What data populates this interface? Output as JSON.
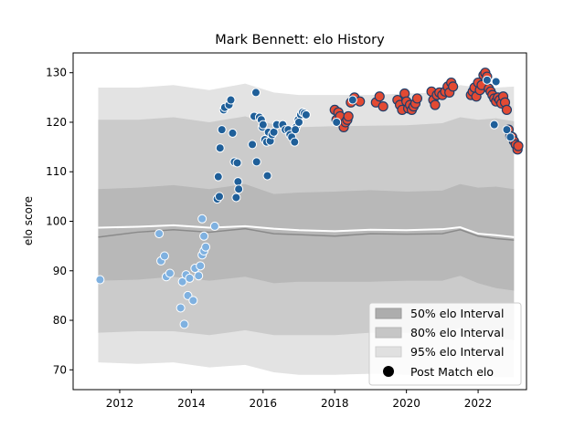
{
  "chart_data": {
    "type": "scatter",
    "title": "Mark Bennett: elo History",
    "xlabel": "",
    "ylabel": "elo score",
    "xlim": [
      2010.7,
      2023.35
    ],
    "ylim": [
      66,
      134
    ],
    "x_ticks": [
      2012,
      2014,
      2016,
      2018,
      2020,
      2022
    ],
    "y_ticks": [
      70,
      80,
      90,
      100,
      110,
      120,
      130
    ],
    "grid": false,
    "legend_position": "lower-right",
    "colors": {
      "band95": "#e3e3e3",
      "band80": "#cbcbcb",
      "band50": "#b8b8b8",
      "median_line": "#8a8a8a",
      "mean_line": "#ffffff",
      "early_fill": "#1f5f99",
      "early_edge": "#ffffff",
      "early_fill_light": "#7fb1e0",
      "late_fill": "#e34a33",
      "late_edge": "#1f3f6b"
    },
    "legend": [
      {
        "label": "50% elo Interval",
        "kind": "band50"
      },
      {
        "label": "80% elo Interval",
        "kind": "band80"
      },
      {
        "label": "95% elo Interval",
        "kind": "band95"
      },
      {
        "label": "Post Match elo",
        "kind": "marker"
      }
    ],
    "bands": {
      "x": [
        2011.4,
        2012.5,
        2013.5,
        2014.5,
        2015.5,
        2016.3,
        2017.0,
        2018.0,
        2019.0,
        2020.0,
        2021.0,
        2021.5,
        2022.0,
        2022.5,
        2023.0
      ],
      "p95_upper": [
        127,
        127,
        127.5,
        126.5,
        127.8,
        126.0,
        125.5,
        125.5,
        125.5,
        125.8,
        126.0,
        127.5,
        127.0,
        127.0,
        127.2
      ],
      "p80_upper": [
        120.5,
        120.5,
        121.0,
        120.0,
        121.2,
        119.5,
        119.0,
        119.2,
        119.3,
        119.4,
        119.8,
        121.0,
        120.5,
        120.8,
        120.2
      ],
      "p50_upper": [
        106.5,
        106.8,
        107.3,
        106.5,
        107.5,
        105.5,
        105.8,
        106.0,
        106.3,
        106.0,
        106.2,
        107.5,
        106.8,
        107.0,
        106.5
      ],
      "p50_lower": [
        88.0,
        88.2,
        88.8,
        88.0,
        88.8,
        87.5,
        87.8,
        87.8,
        87.8,
        88.0,
        88.0,
        89.0,
        87.5,
        86.5,
        86.0
      ],
      "p80_lower": [
        77.5,
        77.8,
        77.8,
        77.0,
        78.0,
        77.0,
        77.0,
        77.0,
        77.5,
        77.5,
        77.5,
        78.5,
        76.8,
        76.5,
        76.0
      ],
      "p95_lower": [
        71.5,
        71.2,
        71.5,
        70.5,
        71.0,
        69.5,
        69.0,
        69.0,
        69.2,
        69.0,
        69.2,
        70.0,
        69.0,
        68.5,
        68.5
      ],
      "median": [
        96.8,
        97.8,
        98.3,
        97.8,
        98.5,
        97.5,
        97.3,
        97.0,
        97.5,
        97.4,
        97.5,
        98.3,
        97.0,
        96.5,
        96.2
      ],
      "mean": [
        98.7,
        98.9,
        99.2,
        98.7,
        99.0,
        98.5,
        98.2,
        98.0,
        98.3,
        98.2,
        98.4,
        98.8,
        97.5,
        97.2,
        96.8
      ]
    },
    "series": [
      {
        "marker": "early",
        "points": [
          [
            2011.45,
            88.2
          ],
          [
            2013.1,
            97.5
          ],
          [
            2013.15,
            92.0
          ],
          [
            2013.25,
            93.0
          ],
          [
            2013.3,
            88.8
          ],
          [
            2013.4,
            89.5
          ],
          [
            2013.75,
            87.8
          ],
          [
            2013.85,
            89.2
          ],
          [
            2013.8,
            79.2
          ],
          [
            2013.95,
            88.5
          ],
          [
            2013.9,
            85.0
          ],
          [
            2013.7,
            82.5
          ],
          [
            2014.05,
            84.0
          ],
          [
            2014.1,
            90.5
          ],
          [
            2014.2,
            89.0
          ],
          [
            2014.25,
            91.0
          ],
          [
            2014.3,
            93.2
          ],
          [
            2014.35,
            94.0
          ],
          [
            2014.4,
            94.8
          ],
          [
            2014.3,
            100.5
          ],
          [
            2014.35,
            97.0
          ],
          [
            2014.65,
            99.0
          ],
          [
            2014.72,
            104.5
          ],
          [
            2014.78,
            105.0
          ],
          [
            2014.75,
            109.0
          ],
          [
            2014.8,
            114.8
          ],
          [
            2014.85,
            118.5
          ],
          [
            2014.9,
            122.5
          ],
          [
            2014.93,
            123.0
          ],
          [
            2015.05,
            123.5
          ],
          [
            2015.1,
            124.5
          ],
          [
            2015.15,
            117.8
          ],
          [
            2015.2,
            112.0
          ],
          [
            2015.25,
            104.8
          ],
          [
            2015.28,
            111.8
          ],
          [
            2015.3,
            108.0
          ],
          [
            2015.32,
            106.5
          ],
          [
            2015.7,
            115.5
          ],
          [
            2015.75,
            121.2
          ],
          [
            2015.8,
            126.0
          ],
          [
            2015.82,
            112.0
          ],
          [
            2015.9,
            121.0
          ],
          [
            2015.95,
            120.5
          ],
          [
            2015.98,
            119.0
          ],
          [
            2016.0,
            119.5
          ],
          [
            2016.05,
            116.5
          ],
          [
            2016.1,
            116.0
          ],
          [
            2016.12,
            109.2
          ],
          [
            2016.15,
            118.0
          ],
          [
            2016.2,
            116.2
          ],
          [
            2016.25,
            117.5
          ],
          [
            2016.3,
            118.0
          ],
          [
            2016.38,
            119.5
          ],
          [
            2016.55,
            119.5
          ],
          [
            2016.62,
            118.5
          ],
          [
            2016.7,
            118.5
          ],
          [
            2016.75,
            117.5
          ],
          [
            2016.8,
            117.0
          ],
          [
            2016.88,
            116.0
          ],
          [
            2016.92,
            119.0
          ],
          [
            2016.98,
            120.5
          ],
          [
            2017.05,
            121.5
          ],
          [
            2017.1,
            122.0
          ],
          [
            2017.15,
            121.8
          ],
          [
            2017.2,
            121.5
          ],
          [
            2016.9,
            118.5
          ],
          [
            2017.0,
            120.0
          ]
        ]
      },
      {
        "marker": "late",
        "points": [
          [
            2018.0,
            122.5
          ],
          [
            2018.05,
            120.5
          ],
          [
            2018.1,
            122.0
          ],
          [
            2018.15,
            121.2
          ],
          [
            2018.25,
            119.0
          ],
          [
            2018.3,
            120.0
          ],
          [
            2018.35,
            120.5
          ],
          [
            2018.38,
            121.2
          ],
          [
            2018.45,
            124.0
          ],
          [
            2018.55,
            125.0
          ],
          [
            2018.7,
            124.2
          ],
          [
            2019.15,
            124.0
          ],
          [
            2019.25,
            125.2
          ],
          [
            2019.35,
            123.2
          ],
          [
            2019.75,
            124.5
          ],
          [
            2019.82,
            123.5
          ],
          [
            2019.88,
            122.5
          ],
          [
            2019.95,
            125.8
          ],
          [
            2020.0,
            124.2
          ],
          [
            2020.05,
            122.8
          ],
          [
            2020.1,
            123.5
          ],
          [
            2020.15,
            122.5
          ],
          [
            2020.2,
            123.2
          ],
          [
            2020.25,
            123.8
          ],
          [
            2020.3,
            124.8
          ],
          [
            2020.7,
            126.2
          ],
          [
            2020.75,
            124.5
          ],
          [
            2020.8,
            123.5
          ],
          [
            2020.85,
            125.5
          ],
          [
            2020.92,
            126.0
          ],
          [
            2021.0,
            125.5
          ],
          [
            2021.08,
            126.2
          ],
          [
            2021.15,
            127.2
          ],
          [
            2021.2,
            126.0
          ],
          [
            2021.25,
            128.0
          ],
          [
            2021.3,
            127.2
          ],
          [
            2021.8,
            125.5
          ],
          [
            2021.85,
            126.2
          ],
          [
            2021.9,
            127.0
          ],
          [
            2021.95,
            125.2
          ],
          [
            2022.0,
            128.0
          ],
          [
            2022.05,
            126.5
          ],
          [
            2022.1,
            127.5
          ],
          [
            2022.15,
            129.5
          ],
          [
            2022.2,
            130.0
          ],
          [
            2022.25,
            129.2
          ],
          [
            2022.3,
            126.8
          ],
          [
            2022.35,
            126.2
          ],
          [
            2022.4,
            125.5
          ],
          [
            2022.45,
            124.8
          ],
          [
            2022.5,
            124.2
          ],
          [
            2022.55,
            125.0
          ],
          [
            2022.6,
            124.5
          ],
          [
            2022.65,
            123.8
          ],
          [
            2022.7,
            125.2
          ],
          [
            2022.75,
            124.0
          ],
          [
            2022.8,
            122.5
          ],
          [
            2022.85,
            118.5
          ],
          [
            2022.9,
            117.2
          ],
          [
            2022.95,
            117.0
          ],
          [
            2023.0,
            116.2
          ],
          [
            2023.05,
            115.5
          ],
          [
            2023.1,
            114.5
          ],
          [
            2023.12,
            115.2
          ]
        ]
      },
      {
        "marker": "early",
        "points": [
          [
            2018.05,
            120.0
          ],
          [
            2018.5,
            124.5
          ],
          [
            2022.25,
            128.5
          ],
          [
            2022.5,
            128.2
          ],
          [
            2022.45,
            119.5
          ],
          [
            2022.8,
            118.5
          ],
          [
            2022.9,
            117.0
          ]
        ]
      }
    ]
  }
}
